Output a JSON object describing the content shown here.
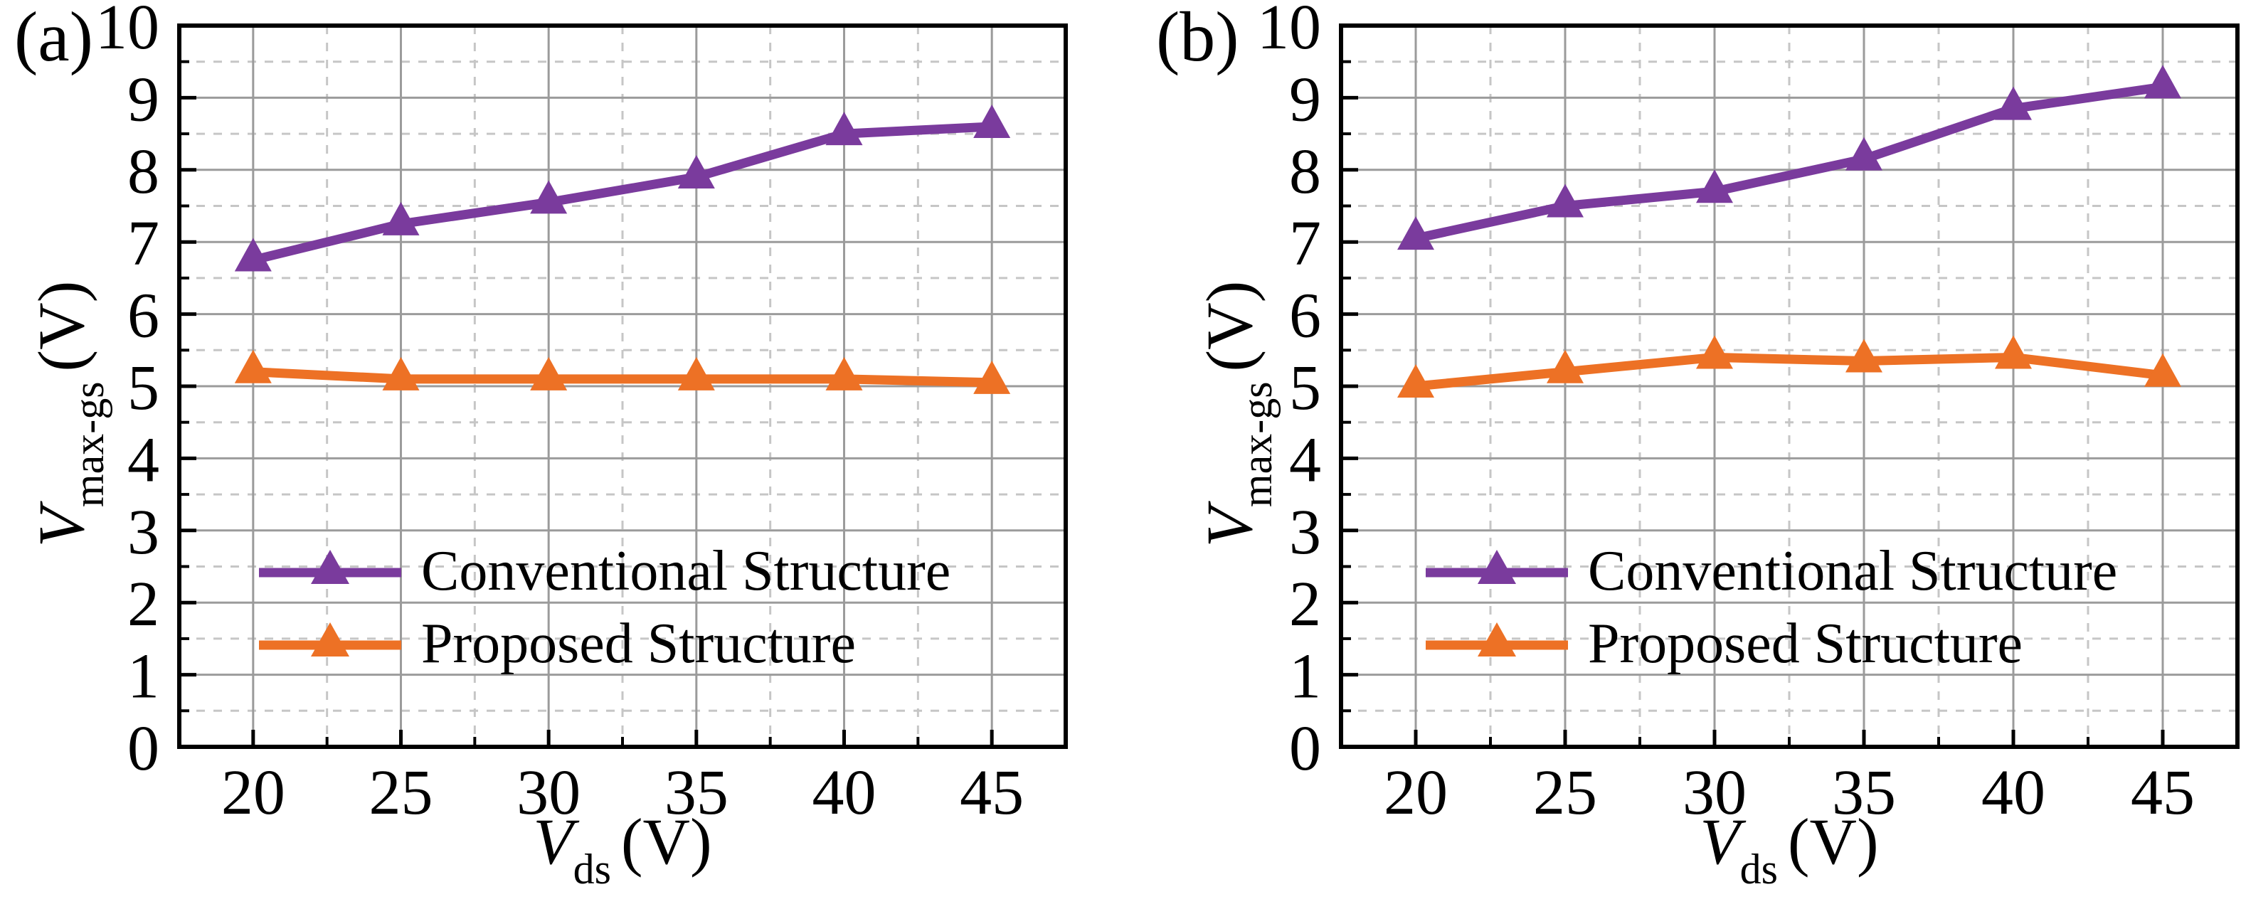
{
  "figure": {
    "panels": [
      {
        "panel_label": "(a)",
        "x_axis": {
          "variable": "V",
          "subscript": "ds",
          "unit": "(V)",
          "ticks": [
            "20",
            "25",
            "30",
            "35",
            "40",
            "45"
          ]
        },
        "y_axis": {
          "variable": "V",
          "subscript": "max-gs",
          "unit": "(V)",
          "ticks": [
            "0",
            "1",
            "2",
            "3",
            "4",
            "5",
            "6",
            "7",
            "8",
            "9",
            "10"
          ]
        },
        "legend": [
          {
            "label": "Conventional Structure",
            "color": "#7A3B9D"
          },
          {
            "label": "Proposed Structure",
            "color": "#ED7125"
          }
        ]
      },
      {
        "panel_label": "(b)",
        "x_axis": {
          "variable": "V",
          "subscript": "ds",
          "unit": "(V)",
          "ticks": [
            "20",
            "25",
            "30",
            "35",
            "40",
            "45"
          ]
        },
        "y_axis": {
          "variable": "V",
          "subscript": "max-gs",
          "unit": "(V)",
          "ticks": [
            "0",
            "1",
            "2",
            "3",
            "4",
            "5",
            "6",
            "7",
            "8",
            "9",
            "10"
          ]
        },
        "legend": [
          {
            "label": "Conventional Structure",
            "color": "#7A3B9D"
          },
          {
            "label": "Proposed Structure",
            "color": "#ED7125"
          }
        ]
      }
    ]
  },
  "chart_data": [
    {
      "type": "line",
      "panel": "(a)",
      "title": "",
      "xlabel": "V_ds (V)",
      "ylabel": "V_max-gs (V)",
      "x": [
        20,
        25,
        30,
        35,
        40,
        45
      ],
      "xlim": [
        17.5,
        47.5
      ],
      "ylim": [
        0,
        10
      ],
      "x_major_ticks": [
        20,
        25,
        30,
        35,
        40,
        45
      ],
      "x_minor_step": 2.5,
      "y_major_step": 1,
      "y_minor_step": 0.5,
      "grid": "major solid gray, minor dashed light-gray",
      "legend_position": "inside lower-left",
      "series": [
        {
          "name": "Conventional Structure",
          "color": "#7A3B9D",
          "marker": "triangle-up",
          "values": [
            6.75,
            7.25,
            7.55,
            7.9,
            8.5,
            8.6
          ]
        },
        {
          "name": "Proposed Structure",
          "color": "#ED7125",
          "marker": "triangle-up",
          "values": [
            5.2,
            5.1,
            5.1,
            5.1,
            5.1,
            5.05
          ]
        }
      ]
    },
    {
      "type": "line",
      "panel": "(b)",
      "title": "",
      "xlabel": "V_ds (V)",
      "ylabel": "V_max-gs (V)",
      "x": [
        20,
        25,
        30,
        35,
        40,
        45
      ],
      "xlim": [
        17.5,
        47.5
      ],
      "ylim": [
        0,
        10
      ],
      "x_major_ticks": [
        20,
        25,
        30,
        35,
        40,
        45
      ],
      "x_minor_step": 2.5,
      "y_major_step": 1,
      "y_minor_step": 0.5,
      "grid": "major solid gray, minor dashed light-gray",
      "legend_position": "inside lower-left",
      "series": [
        {
          "name": "Conventional Structure",
          "color": "#7A3B9D",
          "marker": "triangle-up",
          "values": [
            7.05,
            7.5,
            7.7,
            8.15,
            8.85,
            9.15
          ]
        },
        {
          "name": "Proposed Structure",
          "color": "#ED7125",
          "marker": "triangle-up",
          "values": [
            5.0,
            5.2,
            5.4,
            5.35,
            5.4,
            5.15
          ]
        }
      ]
    }
  ],
  "style_colors": {
    "axis_border": "#000000",
    "major_grid": "#9b9b9b",
    "minor_grid": "#c6c6c6",
    "background": "#ffffff"
  }
}
